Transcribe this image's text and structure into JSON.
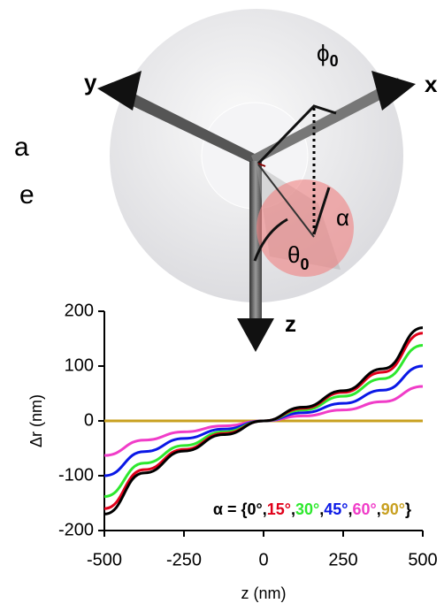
{
  "diagram": {
    "labels": {
      "x": "x",
      "y": "y",
      "z": "z",
      "phi": "ϕ",
      "phi_sub": "0",
      "alpha": "α",
      "theta": "θ",
      "theta_sub": "0"
    },
    "fragments": [
      "a",
      "e"
    ]
  },
  "chart_data": {
    "type": "line",
    "xlabel": "z (nm)",
    "ylabel": "Δr (nm)",
    "x": [
      -500,
      -375,
      -250,
      -125,
      0,
      125,
      250,
      375,
      500
    ],
    "series": [
      {
        "name": "0°",
        "color": "#000000",
        "values": [
          -170,
          -95,
          -55,
          -25,
          0,
          25,
          55,
          95,
          170
        ]
      },
      {
        "name": "15°",
        "color": "#e0001a",
        "values": [
          -160,
          -89,
          -52,
          -23,
          0,
          23,
          52,
          89,
          160
        ]
      },
      {
        "name": "30°",
        "color": "#2ee82e",
        "values": [
          -138,
          -77,
          -45,
          -20,
          0,
          20,
          45,
          77,
          138
        ]
      },
      {
        "name": "45°",
        "color": "#0a18e6",
        "values": [
          -100,
          -56,
          -32,
          -15,
          0,
          15,
          32,
          56,
          100
        ]
      },
      {
        "name": "60°",
        "color": "#f03cc8",
        "values": [
          -63,
          -35,
          -20,
          -9,
          0,
          9,
          20,
          35,
          63
        ]
      },
      {
        "name": "90°",
        "color": "#c8a020",
        "values": [
          0,
          0,
          0,
          0,
          0,
          0,
          0,
          0,
          0
        ]
      }
    ],
    "legend_prefix": "α = {",
    "legend_separator": ",",
    "legend_suffix": "}",
    "xlim": [
      -500,
      500
    ],
    "xticks": [
      -500,
      -250,
      0,
      250,
      500
    ],
    "ylim": [
      -200,
      200
    ],
    "yticks": [
      200,
      100,
      0,
      -100,
      -200
    ]
  }
}
